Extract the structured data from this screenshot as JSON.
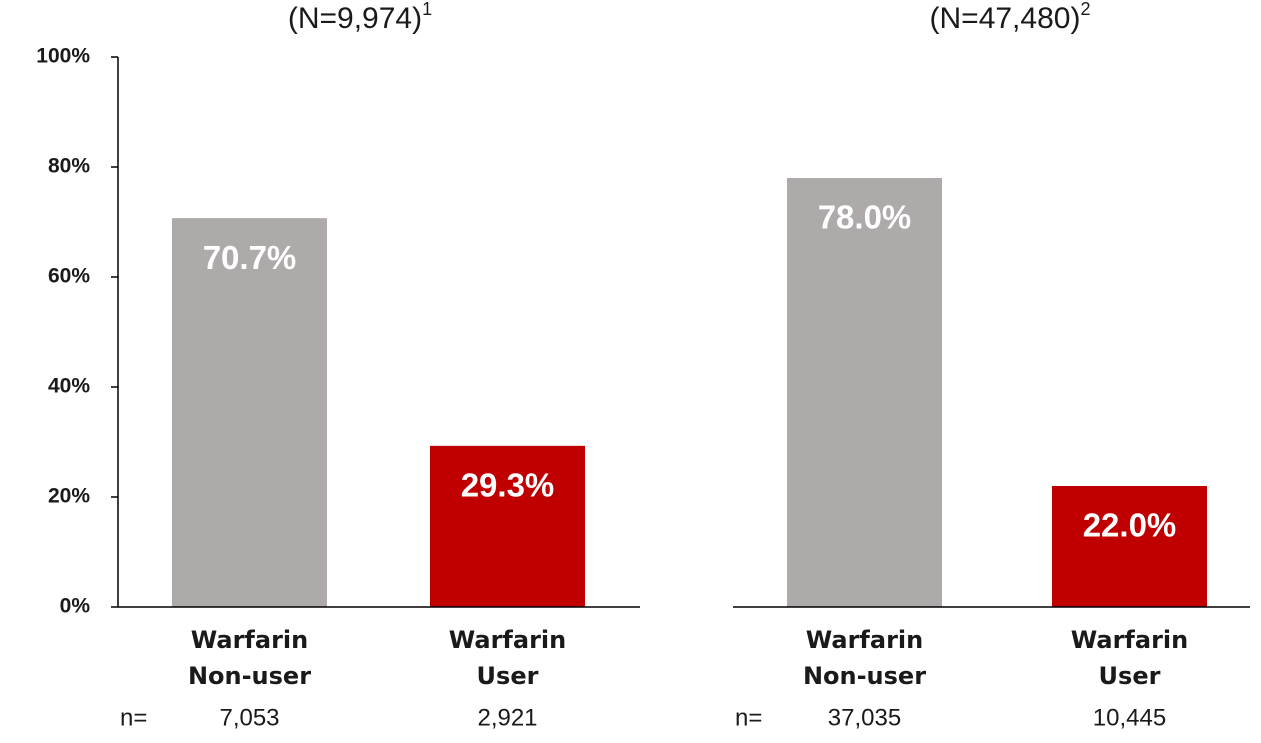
{
  "chart_data": [
    {
      "type": "bar",
      "title": "(N=9,974)",
      "title_note": "1",
      "categories": [
        "Warfarin Non-user",
        "Warfarin User"
      ],
      "values": [
        70.7,
        29.3
      ],
      "value_labels": [
        "70.7%",
        "29.3%"
      ],
      "colors": [
        "#aeaaaa",
        "#c00000"
      ],
      "ylim": [
        0,
        100
      ],
      "yticks": [
        {
          "value": 0,
          "label": "0%"
        },
        {
          "value": 20,
          "label": "20%"
        },
        {
          "value": 40,
          "label": "40%"
        },
        {
          "value": 60,
          "label": "60%"
        },
        {
          "value": 80,
          "label": "80%"
        },
        {
          "value": 100,
          "label": "100%"
        }
      ],
      "count_prefix": "n=",
      "counts": [
        "7,053",
        "2,921"
      ]
    },
    {
      "type": "bar",
      "title": "(N=47,480)",
      "title_note": "2",
      "categories": [
        "Warfarin Non-user",
        "Warfarin User"
      ],
      "values": [
        78.0,
        22.0
      ],
      "value_labels": [
        "78.0%",
        "22.0%"
      ],
      "colors": [
        "#aeaaaa",
        "#c00000"
      ],
      "ylim": [
        0,
        100
      ],
      "count_prefix": "n=",
      "counts": [
        "37,035",
        "10,445"
      ]
    }
  ]
}
